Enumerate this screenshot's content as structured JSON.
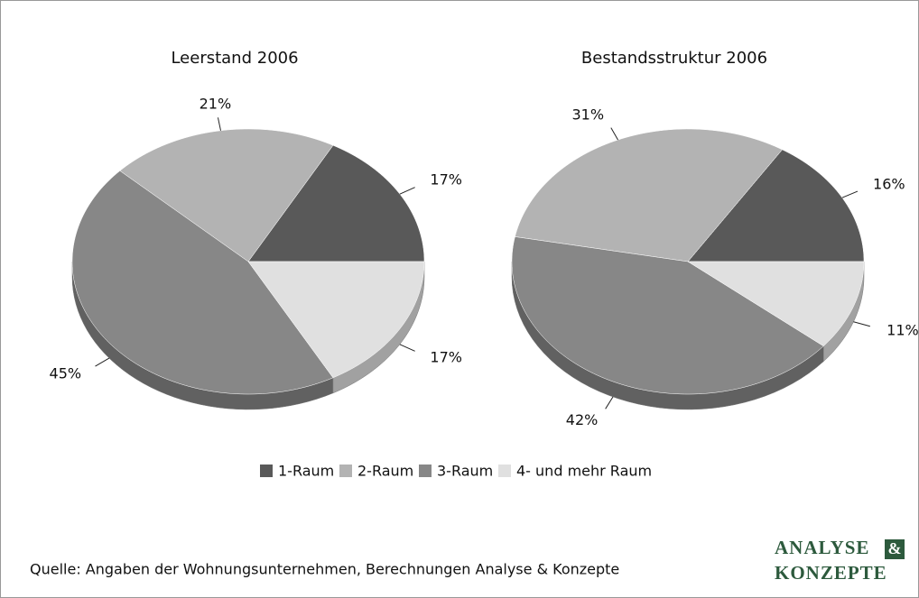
{
  "chart_data": [
    {
      "type": "pie",
      "title": "Leerstand 2006",
      "categories": [
        "1-Raum",
        "2-Raum",
        "3-Raum",
        "4- und mehr Raum"
      ],
      "values": [
        17,
        21,
        45,
        17
      ],
      "value_labels": [
        "17%",
        "21%",
        "45%",
        "17%"
      ],
      "colors": [
        "#595959",
        "#b3b3b3",
        "#878787",
        "#e0e0e0"
      ]
    },
    {
      "type": "pie",
      "title": "Bestandsstruktur 2006",
      "categories": [
        "1-Raum",
        "2-Raum",
        "3-Raum",
        "4- und mehr Raum"
      ],
      "values": [
        16,
        31,
        42,
        11
      ],
      "value_labels": [
        "16%",
        "31%",
        "42%",
        "11%"
      ],
      "colors": [
        "#595959",
        "#b3b3b3",
        "#878787",
        "#e0e0e0"
      ]
    }
  ],
  "source": "Quelle: Angaben der Wohnungsunternehmen, Berechnungen Analyse & Konzepte",
  "logo": {
    "word1": "ANALYSE",
    "amp": "&",
    "word2": "KONZEPTE"
  }
}
